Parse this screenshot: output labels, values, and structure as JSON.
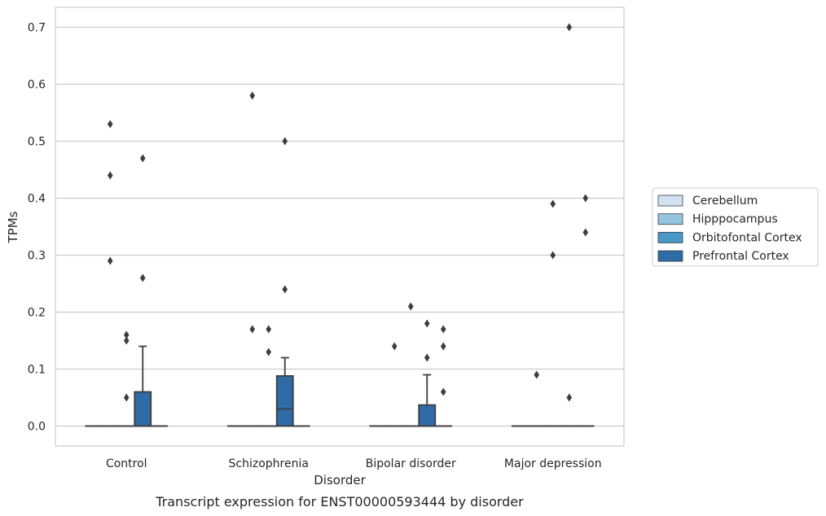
{
  "caption": "Transcript expression for ENST00000593444 by disorder",
  "chart_data": {
    "type": "box",
    "xlabel": "Disorder",
    "ylabel": "TPMs",
    "ylim": [
      -0.035,
      0.735
    ],
    "yticks": [
      0.0,
      0.1,
      0.2,
      0.3,
      0.4,
      0.5,
      0.6,
      0.7
    ],
    "ytick_labels": [
      "0.0",
      "0.1",
      "0.2",
      "0.3",
      "0.4",
      "0.5",
      "0.6",
      "0.7"
    ],
    "grid": "horizontal",
    "legend_position": "right",
    "categories": [
      "Control",
      "Schizophrenia",
      "Bipolar disorder",
      "Major depression"
    ],
    "series": [
      {
        "name": "Cerebellum",
        "color": "#d0e1f2",
        "boxes": [
          {
            "q1": 0,
            "median": 0,
            "q3": 0,
            "whisker_low": 0,
            "whisker_high": 0,
            "outliers": []
          },
          {
            "q1": 0,
            "median": 0,
            "q3": 0,
            "whisker_low": 0,
            "whisker_high": 0,
            "outliers": []
          },
          {
            "q1": 0,
            "median": 0,
            "q3": 0,
            "whisker_low": 0,
            "whisker_high": 0,
            "outliers": []
          },
          {
            "q1": 0,
            "median": 0,
            "q3": 0,
            "whisker_low": 0,
            "whisker_high": 0,
            "outliers": []
          }
        ]
      },
      {
        "name": "Hipppocampus",
        "color": "#94c4df",
        "boxes": [
          {
            "q1": 0,
            "median": 0,
            "q3": 0,
            "whisker_low": 0,
            "whisker_high": 0,
            "outliers": [
              0.53,
              0.44,
              0.29
            ]
          },
          {
            "q1": 0,
            "median": 0,
            "q3": 0,
            "whisker_low": 0,
            "whisker_high": 0,
            "outliers": [
              0.58,
              0.17
            ]
          },
          {
            "q1": 0,
            "median": 0,
            "q3": 0,
            "whisker_low": 0,
            "whisker_high": 0,
            "outliers": [
              0.14
            ]
          },
          {
            "q1": 0,
            "median": 0,
            "q3": 0,
            "whisker_low": 0,
            "whisker_high": 0,
            "outliers": [
              0.09
            ]
          }
        ]
      },
      {
        "name": "Orbitofontal Cortex",
        "color": "#4a98c9",
        "boxes": [
          {
            "q1": 0,
            "median": 0,
            "q3": 0,
            "whisker_low": 0,
            "whisker_high": 0,
            "outliers": [
              0.16,
              0.15,
              0.05
            ]
          },
          {
            "q1": 0,
            "median": 0,
            "q3": 0,
            "whisker_low": 0,
            "whisker_high": 0,
            "outliers": [
              0.17,
              0.13
            ]
          },
          {
            "q1": 0,
            "median": 0,
            "q3": 0,
            "whisker_low": 0,
            "whisker_high": 0,
            "outliers": [
              0.21
            ]
          },
          {
            "q1": 0,
            "median": 0,
            "q3": 0,
            "whisker_low": 0,
            "whisker_high": 0,
            "outliers": [
              0.39,
              0.3
            ]
          }
        ]
      },
      {
        "name": "Prefrontal Cortex",
        "color": "#2e6ba7",
        "boxes": [
          {
            "q1": 0,
            "median": 0,
            "q3": 0.06,
            "whisker_low": 0,
            "whisker_high": 0.14,
            "outliers": [
              0.47,
              0.26
            ]
          },
          {
            "q1": 0,
            "median": 0.03,
            "q3": 0.088,
            "whisker_low": 0,
            "whisker_high": 0.12,
            "outliers": [
              0.5,
              0.24
            ]
          },
          {
            "q1": 0,
            "median": 0,
            "q3": 0.037,
            "whisker_low": 0,
            "whisker_high": 0.09,
            "outliers": [
              0.18,
              0.12
            ]
          },
          {
            "q1": 0,
            "median": 0,
            "q3": 0,
            "whisker_low": 0,
            "whisker_high": 0,
            "outliers": [
              0.7,
              0.05
            ]
          }
        ]
      },
      {
        "name": "",
        "color": "#ffffff",
        "boxes": [
          {
            "q1": 0,
            "median": 0,
            "q3": 0,
            "whisker_low": 0,
            "whisker_high": 0,
            "outliers": []
          },
          {
            "q1": 0,
            "median": 0,
            "q3": 0,
            "whisker_low": 0,
            "whisker_high": 0,
            "outliers": []
          },
          {
            "q1": 0,
            "median": 0,
            "q3": 0,
            "whisker_low": 0,
            "whisker_high": 0,
            "outliers": [
              0.17,
              0.14,
              0.06
            ]
          },
          {
            "q1": 0,
            "median": 0,
            "q3": 0,
            "whisker_low": 0,
            "whisker_high": 0,
            "outliers": [
              0.4,
              0.34
            ]
          }
        ]
      }
    ]
  }
}
